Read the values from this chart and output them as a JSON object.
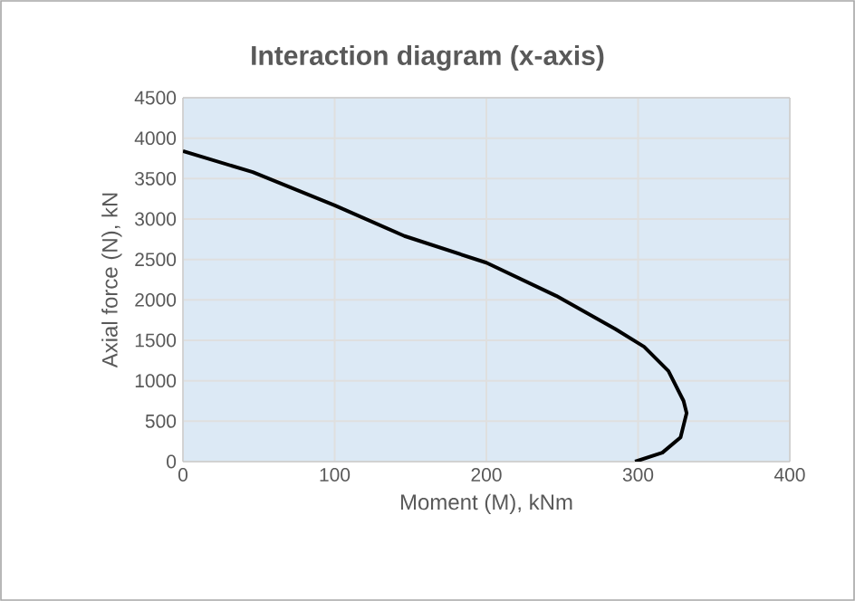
{
  "chart_data": {
    "type": "line",
    "title": "Interaction diagram (x-axis)",
    "xlabel": "Moment (M), kNm",
    "ylabel": "Axial force (N), kN",
    "series": [
      {
        "color": "#000000",
        "x": [
          0,
          46,
          100,
          146,
          200,
          246,
          285,
          304,
          320,
          330,
          332,
          328,
          316,
          298
        ],
        "values": [
          3840,
          3580,
          3170,
          2790,
          2460,
          2050,
          1640,
          1420,
          1120,
          750,
          600,
          300,
          110,
          0
        ]
      }
    ],
    "xlim": [
      0,
      400
    ],
    "xticks": [
      0,
      100,
      200,
      300,
      400
    ],
    "ylim": [
      0,
      4500
    ],
    "yticks": [
      0,
      500,
      1000,
      1500,
      2000,
      2500,
      3000,
      3500,
      4000,
      4500
    ],
    "grid": true,
    "marker": "none",
    "line_style": "solid"
  }
}
